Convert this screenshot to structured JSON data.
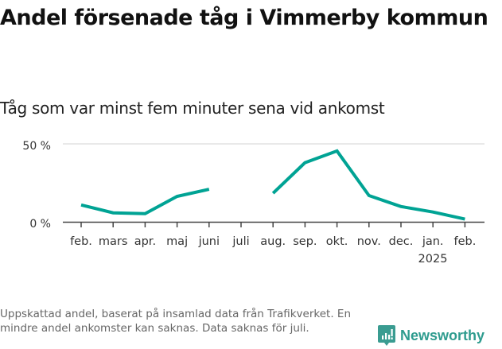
{
  "title": "Andel försenade tåg i Vimmerby kommun",
  "subtitle": "Tåg som var minst fem minuter sena vid ankomst",
  "footnote": "Uppskattad andel, baserat på insamlad data från Trafikverket. En mindre andel ankomster kan saknas. Data saknas för juli.",
  "logo": {
    "text": "Newsworthy",
    "color": "#3a9c91"
  },
  "y_axis": {
    "ticks": [
      "50 %",
      "0 %"
    ]
  },
  "x_axis": {
    "ticks": [
      "feb.",
      "mars",
      "apr.",
      "maj",
      "juni",
      "juli",
      "aug.",
      "sep.",
      "okt.",
      "nov.",
      "dec.",
      "jan.",
      "feb."
    ],
    "year_label": "2025"
  },
  "chart_data": {
    "type": "line",
    "title": "Andel försenade tåg i Vimmerby kommun",
    "subtitle": "Tåg som var minst fem minuter sena vid ankomst",
    "xlabel": "",
    "ylabel": "",
    "categories": [
      "feb.",
      "mars",
      "apr.",
      "maj",
      "juni",
      "juli",
      "aug.",
      "sep.",
      "okt.",
      "nov.",
      "dec.",
      "jan. 2025",
      "feb."
    ],
    "series": [
      {
        "name": "Andel försenade tåg (%)",
        "color": "#00a394",
        "values": [
          11,
          6,
          5.5,
          16.5,
          21,
          null,
          18.5,
          38,
          45.5,
          17,
          10,
          6.5,
          2
        ]
      }
    ],
    "ylim": [
      0,
      50
    ],
    "y_ticks": [
      0,
      50
    ],
    "y_tick_format": "{v} %",
    "grid": true,
    "legend": "none",
    "annotations": [
      "Data saknas för juli."
    ]
  }
}
